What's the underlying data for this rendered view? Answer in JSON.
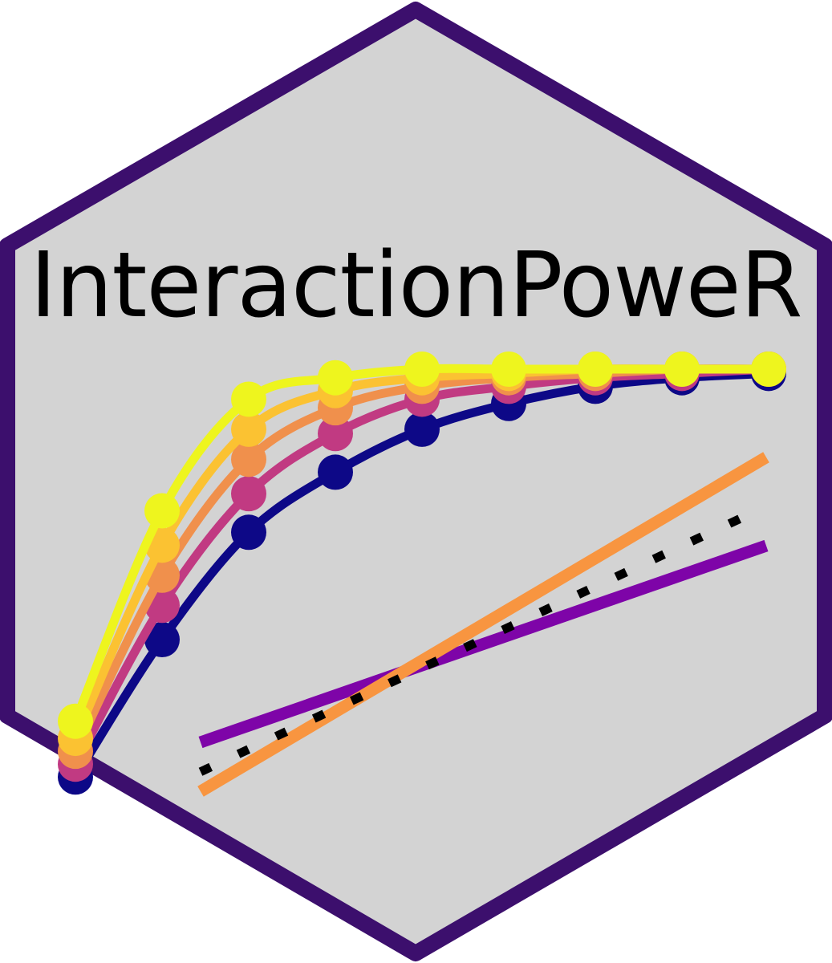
{
  "title": "InteractionPoweR",
  "colors": {
    "background": "#d3d3d3",
    "border": "#3c0f6d",
    "title_text": "#000000",
    "power_curves": [
      "#0d0887",
      "#c13a82",
      "#f0904c",
      "#fbc232",
      "#eef51e"
    ],
    "line_purple": "#7e04a8",
    "line_orange": "#f89540",
    "line_dotted": "#000000"
  },
  "power_curves": {
    "points_per_curve": 9,
    "levels": [
      [
        0.05,
        0.37,
        0.62,
        0.76,
        0.86,
        0.92,
        0.96,
        0.98,
        0.99
      ],
      [
        0.08,
        0.45,
        0.71,
        0.85,
        0.93,
        0.96,
        0.98,
        0.99,
        1.0
      ],
      [
        0.11,
        0.52,
        0.79,
        0.91,
        0.96,
        0.98,
        0.99,
        1.0,
        1.0
      ],
      [
        0.14,
        0.59,
        0.86,
        0.95,
        0.98,
        0.99,
        1.0,
        1.0,
        1.0
      ],
      [
        0.18,
        0.67,
        0.93,
        0.98,
        1.0,
        1.0,
        1.0,
        1.0,
        1.0
      ]
    ]
  },
  "interaction_lines": [
    {
      "color_key": "line_purple",
      "style": "solid",
      "from": 0.0,
      "to": 1.0
    },
    {
      "color_key": "line_orange",
      "style": "solid",
      "from": -0.25,
      "to": 1.45
    },
    {
      "color_key": "line_dotted",
      "style": "dotted",
      "from": -0.15,
      "to": 1.2
    }
  ]
}
